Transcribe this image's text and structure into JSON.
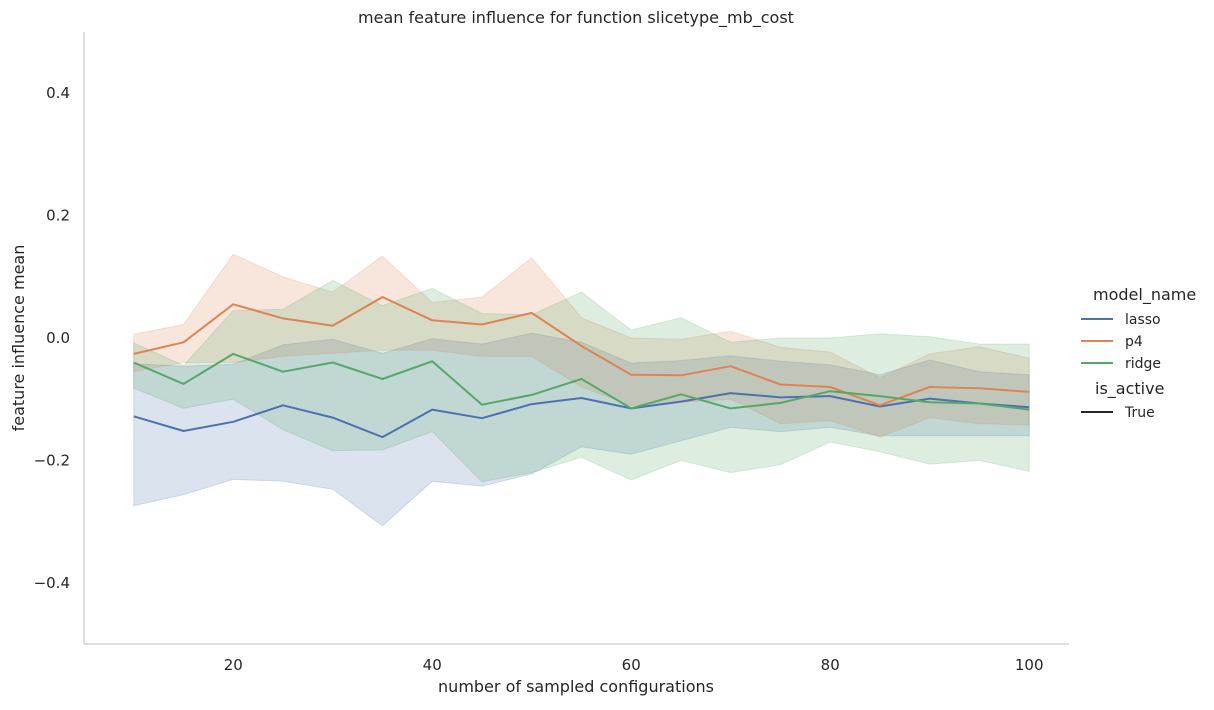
{
  "chart_data": {
    "type": "line",
    "title": "mean feature influence for function slicetype_mb_cost",
    "xlabel": "number of sampled configurations",
    "ylabel": "feature influence mean",
    "xlim": [
      5,
      104
    ],
    "ylim": [
      -0.5,
      0.5
    ],
    "xticks": [
      20,
      40,
      60,
      80,
      100
    ],
    "xtick_labels": [
      "20",
      "40",
      "60",
      "80",
      "100"
    ],
    "yticks": [
      -0.4,
      -0.2,
      0.0,
      0.2,
      0.4
    ],
    "ytick_labels": [
      "−0.4",
      "−0.2",
      "0.0",
      "0.2",
      "0.4"
    ],
    "grid": false,
    "legend": {
      "placement": "right",
      "hue_title": "model_name",
      "style_title": "is_active",
      "style_entries": [
        "True"
      ]
    },
    "x": [
      10,
      15,
      20,
      25,
      30,
      35,
      40,
      45,
      50,
      55,
      60,
      65,
      70,
      75,
      80,
      85,
      90,
      95,
      100
    ],
    "series": [
      {
        "name": "lasso",
        "color": "#4c72b0",
        "values": [
          -0.128,
          -0.152,
          -0.137,
          -0.11,
          -0.13,
          -0.162,
          -0.117,
          -0.131,
          -0.108,
          -0.098,
          -0.115,
          -0.104,
          -0.09,
          -0.097,
          -0.095,
          -0.112,
          -0.099,
          -0.107,
          -0.113
        ],
        "ci_low": [
          -0.274,
          -0.256,
          -0.231,
          -0.234,
          -0.247,
          -0.307,
          -0.234,
          -0.242,
          -0.222,
          -0.178,
          -0.19,
          -0.168,
          -0.146,
          -0.153,
          -0.146,
          -0.16,
          -0.16,
          -0.16,
          -0.16
        ],
        "ci_high": [
          -0.042,
          -0.046,
          -0.043,
          -0.011,
          -0.002,
          -0.025,
          -0.001,
          -0.01,
          0.008,
          -0.007,
          -0.041,
          -0.037,
          -0.029,
          -0.038,
          -0.044,
          -0.06,
          -0.036,
          -0.055,
          -0.06
        ]
      },
      {
        "name": "p4",
        "color": "#dd8452",
        "values": [
          -0.026,
          -0.007,
          0.055,
          0.032,
          0.02,
          0.067,
          0.029,
          0.022,
          0.041,
          -0.013,
          -0.06,
          -0.061,
          -0.046,
          -0.076,
          -0.08,
          -0.11,
          -0.08,
          -0.082,
          -0.088
        ],
        "ci_low": [
          -0.055,
          -0.04,
          -0.04,
          -0.03,
          -0.025,
          -0.02,
          -0.02,
          -0.03,
          -0.03,
          -0.08,
          -0.11,
          -0.105,
          -0.1,
          -0.14,
          -0.135,
          -0.162,
          -0.13,
          -0.14,
          -0.142
        ],
        "ci_high": [
          0.006,
          0.022,
          0.137,
          0.1,
          0.075,
          0.134,
          0.058,
          0.067,
          0.131,
          0.033,
          0.0,
          -0.002,
          0.011,
          -0.015,
          -0.023,
          -0.065,
          -0.026,
          -0.014,
          -0.033
        ]
      },
      {
        "name": "ridge",
        "color": "#55a868",
        "values": [
          -0.04,
          -0.075,
          -0.026,
          -0.055,
          -0.04,
          -0.067,
          -0.038,
          -0.109,
          -0.093,
          -0.067,
          -0.115,
          -0.092,
          -0.115,
          -0.106,
          -0.087,
          -0.095,
          -0.105,
          -0.107,
          -0.117
        ],
        "ci_low": [
          -0.082,
          -0.115,
          -0.1,
          -0.15,
          -0.184,
          -0.183,
          -0.153,
          -0.235,
          -0.22,
          -0.195,
          -0.232,
          -0.2,
          -0.22,
          -0.207,
          -0.17,
          -0.186,
          -0.206,
          -0.2,
          -0.218
        ],
        "ci_high": [
          -0.008,
          -0.045,
          0.045,
          0.047,
          0.094,
          0.053,
          0.081,
          0.04,
          0.038,
          0.075,
          0.013,
          0.033,
          -0.007,
          0.0,
          0.0,
          0.007,
          0.002,
          -0.01,
          -0.01
        ]
      }
    ]
  }
}
